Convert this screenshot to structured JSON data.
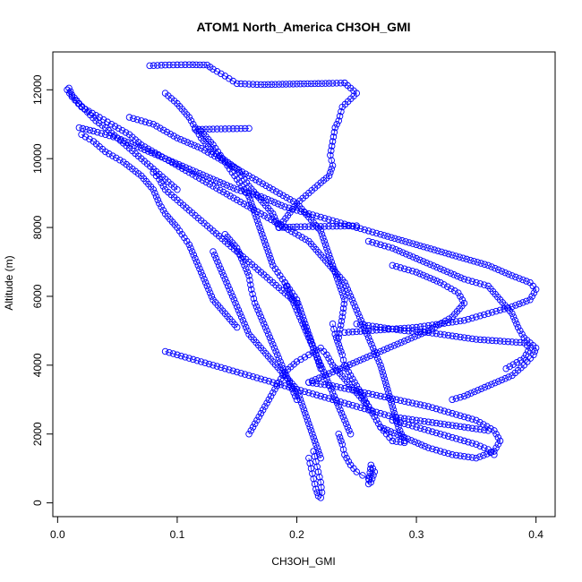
{
  "chart_data": {
    "type": "scatter",
    "title": "ATOM1 North_America CH3OH_GMI",
    "xlabel": "CH3OH_GMI",
    "ylabel": "Altitude (m)",
    "xlim": [
      -0.004,
      0.416
    ],
    "ylim": [
      -400,
      13100
    ],
    "x_ticks": [
      0.0,
      0.1,
      0.2,
      0.3,
      0.4
    ],
    "x_tick_labels": [
      "0.0",
      "0.1",
      "0.2",
      "0.3",
      "0.4"
    ],
    "y_ticks": [
      0,
      2000,
      4000,
      6000,
      8000,
      10000,
      12000
    ],
    "y_tick_labels": [
      "0",
      "2000",
      "4000",
      "6000",
      "8000",
      "10000",
      "12000"
    ],
    "grid": false,
    "marker": "open-circle",
    "color": "#0000ff",
    "connected": true,
    "series": [
      {
        "x": [
          0.077,
          0.09,
          0.11,
          0.125,
          0.13,
          0.14,
          0.15,
          0.17,
          0.2,
          0.23,
          0.24
        ],
        "y": [
          12700,
          12720,
          12730,
          12720,
          12600,
          12400,
          12180,
          12150,
          12170,
          12190,
          12200
        ]
      },
      {
        "x": [
          0.24,
          0.25,
          0.238,
          0.235,
          0.232,
          0.23,
          0.228,
          0.23,
          0.227,
          0.22,
          0.2,
          0.185
        ],
        "y": [
          12200,
          11900,
          11500,
          11100,
          10900,
          10500,
          10100,
          9800,
          9500,
          9300,
          8700,
          8000
        ]
      },
      {
        "x": [
          0.09,
          0.1,
          0.11,
          0.115,
          0.12,
          0.13,
          0.15,
          0.16,
          0.17,
          0.18,
          0.185
        ],
        "y": [
          11900,
          11600,
          11200,
          10900,
          10600,
          10200,
          9700,
          9200,
          8800,
          8400,
          8000
        ]
      },
      {
        "x": [
          0.115,
          0.13,
          0.15,
          0.16
        ],
        "y": [
          10850,
          10860,
          10870,
          10880
        ]
      },
      {
        "x": [
          0.008,
          0.012,
          0.02,
          0.035,
          0.045,
          0.06,
          0.07,
          0.09,
          0.11,
          0.13,
          0.15,
          0.17,
          0.19,
          0.21,
          0.23,
          0.25
        ],
        "y": [
          12000,
          11800,
          11500,
          11200,
          11000,
          10700,
          10400,
          10000,
          9700,
          9400,
          9100,
          8900,
          8600,
          8400,
          8200,
          8000
        ]
      },
      {
        "x": [
          0.02,
          0.03,
          0.04,
          0.055,
          0.07,
          0.08,
          0.085,
          0.09,
          0.1,
          0.11,
          0.115,
          0.12,
          0.125,
          0.13,
          0.14,
          0.15
        ],
        "y": [
          10700,
          10500,
          10200,
          9900,
          9500,
          9100,
          8700,
          8400,
          8000,
          7500,
          7100,
          6700,
          6300,
          5900,
          5500,
          5100
        ]
      },
      {
        "x": [
          0.018,
          0.03,
          0.05,
          0.07,
          0.09,
          0.11,
          0.13,
          0.15,
          0.17,
          0.19,
          0.21,
          0.22,
          0.23,
          0.24,
          0.245,
          0.25,
          0.255,
          0.26,
          0.265,
          0.27,
          0.275,
          0.28,
          0.285,
          0.29
        ],
        "y": [
          10900,
          10800,
          10600,
          10300,
          10000,
          9600,
          9200,
          8800,
          8400,
          8000,
          7600,
          7200,
          6800,
          6400,
          6000,
          5600,
          5200,
          4800,
          4400,
          4000,
          3400,
          2800,
          2200,
          1800
        ]
      },
      {
        "x": [
          0.06,
          0.08,
          0.1,
          0.12,
          0.14,
          0.16,
          0.18,
          0.2,
          0.21,
          0.22,
          0.225,
          0.23,
          0.235,
          0.24,
          0.238,
          0.235
        ],
        "y": [
          11200,
          11000,
          10600,
          10300,
          9900,
          9500,
          9100,
          8700,
          8300,
          7900,
          7400,
          6900,
          6400,
          5900,
          5400,
          4800
        ]
      },
      {
        "x": [
          0.12,
          0.13,
          0.14,
          0.15,
          0.16,
          0.165,
          0.17,
          0.175,
          0.18,
          0.19,
          0.2,
          0.205,
          0.21,
          0.215,
          0.22
        ],
        "y": [
          10800,
          10400,
          9900,
          9400,
          8900,
          8400,
          7900,
          7400,
          6900,
          6400,
          5900,
          5400,
          4900,
          4400,
          3900
        ]
      },
      {
        "x": [
          0.185,
          0.2,
          0.22,
          0.24,
          0.25
        ],
        "y": [
          8000,
          8020,
          8030,
          8040,
          8050
        ]
      },
      {
        "x": [
          0.25,
          0.27,
          0.3,
          0.33,
          0.36,
          0.38,
          0.395,
          0.4,
          0.395,
          0.38,
          0.36,
          0.34,
          0.32,
          0.3,
          0.28,
          0.26,
          0.24
        ],
        "y": [
          8000,
          7800,
          7500,
          7200,
          6900,
          6600,
          6400,
          6200,
          5900,
          5700,
          5500,
          5300,
          5200,
          5100,
          5050,
          5000,
          4950
        ]
      },
      {
        "x": [
          0.26,
          0.28,
          0.3,
          0.32,
          0.34,
          0.36,
          0.37,
          0.38,
          0.385,
          0.39,
          0.4,
          0.398,
          0.39,
          0.38,
          0.36,
          0.34,
          0.33
        ],
        "y": [
          7600,
          7400,
          7100,
          6800,
          6500,
          6300,
          5900,
          5500,
          5100,
          4800,
          4500,
          4300,
          4000,
          3700,
          3400,
          3100,
          3000
        ]
      },
      {
        "x": [
          0.28,
          0.3,
          0.32,
          0.335,
          0.34,
          0.33,
          0.31,
          0.29,
          0.27,
          0.25,
          0.23,
          0.21
        ],
        "y": [
          6900,
          6700,
          6400,
          6100,
          5800,
          5400,
          5000,
          4700,
          4400,
          4100,
          3800,
          3500
        ]
      },
      {
        "x": [
          0.21,
          0.23,
          0.25,
          0.27,
          0.29,
          0.31,
          0.33,
          0.35,
          0.365,
          0.37,
          0.365,
          0.35,
          0.33,
          0.31,
          0.29,
          0.27
        ],
        "y": [
          3500,
          3400,
          3250,
          3100,
          2950,
          2800,
          2600,
          2400,
          2100,
          1800,
          1500,
          1300,
          1400,
          1600,
          1900,
          2200
        ]
      },
      {
        "x": [
          0.16,
          0.165,
          0.17,
          0.175,
          0.18,
          0.185,
          0.19,
          0.2,
          0.21,
          0.22,
          0.225,
          0.23,
          0.24,
          0.25,
          0.26
        ],
        "y": [
          2000,
          2300,
          2600,
          2900,
          3200,
          3500,
          3800,
          4100,
          4300,
          4500,
          4300,
          4000,
          3600,
          3200,
          2800
        ]
      },
      {
        "x": [
          0.13,
          0.135,
          0.14,
          0.145,
          0.15,
          0.155,
          0.16,
          0.17,
          0.18,
          0.19,
          0.2,
          0.205,
          0.21,
          0.215,
          0.22
        ],
        "y": [
          7300,
          6900,
          6500,
          6100,
          5700,
          5300,
          4900,
          4500,
          4100,
          3700,
          3300,
          2800,
          2300,
          1800,
          1300
        ]
      },
      {
        "x": [
          0.21,
          0.212,
          0.214,
          0.216,
          0.218,
          0.22,
          0.221,
          0.22,
          0.218,
          0.216,
          0.214
        ],
        "y": [
          1300,
          1000,
          700,
          400,
          200,
          150,
          300,
          600,
          900,
          1200,
          1500
        ]
      },
      {
        "x": [
          0.235,
          0.238,
          0.24,
          0.245,
          0.25,
          0.255,
          0.26,
          0.262,
          0.265,
          0.262,
          0.26
        ],
        "y": [
          2000,
          1700,
          1400,
          1100,
          900,
          800,
          700,
          600,
          900,
          1100,
          550
        ]
      },
      {
        "x": [
          0.23,
          0.232,
          0.235,
          0.238,
          0.24,
          0.245,
          0.25,
          0.255,
          0.26,
          0.265,
          0.27,
          0.275,
          0.28,
          0.29
        ],
        "y": [
          5200,
          4900,
          4600,
          4300,
          4000,
          3700,
          3400,
          3100,
          2800,
          2500,
          2200,
          2000,
          1800,
          1750
        ]
      },
      {
        "x": [
          0.14,
          0.15,
          0.155,
          0.16,
          0.162,
          0.165,
          0.17,
          0.175,
          0.18,
          0.185,
          0.19,
          0.195,
          0.2
        ],
        "y": [
          7800,
          7400,
          7000,
          6600,
          6200,
          5800,
          5400,
          5000,
          4600,
          4200,
          3800,
          3400,
          3000
        ]
      },
      {
        "x": [
          0.19,
          0.195,
          0.2,
          0.205,
          0.21,
          0.215,
          0.22,
          0.225,
          0.23,
          0.235,
          0.24,
          0.245
        ],
        "y": [
          6400,
          6000,
          5600,
          5200,
          4800,
          4400,
          4000,
          3600,
          3200,
          2800,
          2400,
          2000
        ]
      },
      {
        "x": [
          0.08,
          0.085,
          0.09,
          0.1,
          0.11,
          0.12,
          0.13,
          0.14,
          0.15,
          0.16,
          0.17,
          0.18,
          0.19,
          0.2
        ],
        "y": [
          9600,
          9400,
          9100,
          8800,
          8500,
          8200,
          7900,
          7600,
          7300,
          7000,
          6700,
          6400,
          6100,
          5800
        ]
      },
      {
        "x": [
          0.0095,
          0.012,
          0.018,
          0.025,
          0.032,
          0.04,
          0.05,
          0.06,
          0.07,
          0.08,
          0.09,
          0.1
        ],
        "y": [
          12050,
          11850,
          11600,
          11350,
          11100,
          10900,
          10600,
          10300,
          10000,
          9700,
          9400,
          9100
        ]
      },
      {
        "x": [
          0.09,
          0.1,
          0.12,
          0.14,
          0.16,
          0.18,
          0.2,
          0.22,
          0.24,
          0.26,
          0.28,
          0.3,
          0.32,
          0.34,
          0.36
        ],
        "y": [
          4400,
          4300,
          4100,
          3900,
          3700,
          3500,
          3300,
          3100,
          2900,
          2700,
          2500,
          2400,
          2300,
          2200,
          2100
        ]
      },
      {
        "x": [
          0.25,
          0.27,
          0.29,
          0.31,
          0.33,
          0.35,
          0.37,
          0.39,
          0.395,
          0.39,
          0.375
        ],
        "y": [
          5200,
          5100,
          5000,
          4950,
          4850,
          4750,
          4700,
          4650,
          4500,
          4200,
          3900
        ]
      },
      {
        "x": [
          0.28,
          0.29,
          0.3,
          0.31,
          0.32,
          0.33,
          0.34,
          0.35,
          0.36,
          0.365
        ],
        "y": [
          2400,
          2300,
          2200,
          2100,
          2000,
          1900,
          1800,
          1700,
          1550,
          1400
        ]
      }
    ]
  }
}
